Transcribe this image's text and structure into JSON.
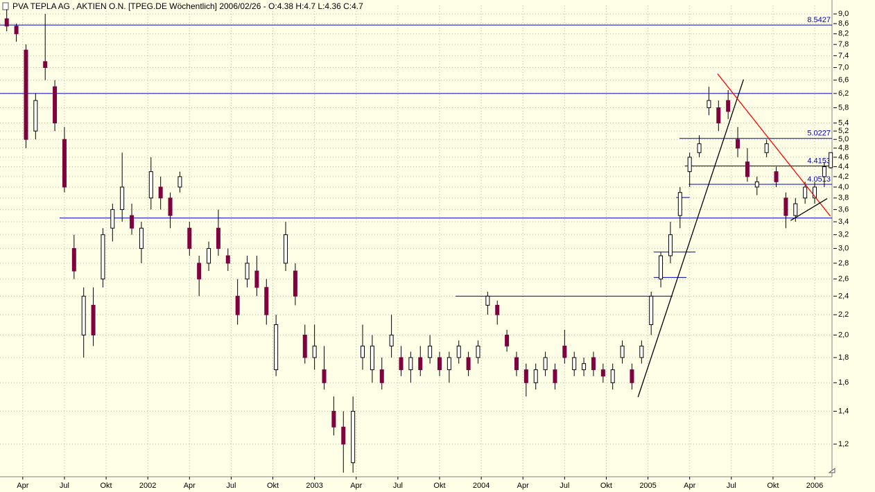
{
  "chart_data": {
    "type": "candlestick",
    "title": "PVA TEPLA AG , AKTIEN O.N. [TPEG.DE  Wöchentlich] 2006/02/26 - O:4.38 H:4.7 L:4.36 C:4.7",
    "log_scale_y": true,
    "grid": true,
    "up_color": "#ffffff",
    "down_color": "#800040",
    "xlim": [
      -2.1,
      257.4
    ],
    "ylim": [
      1.03,
      9.36
    ],
    "xticks": [
      {
        "value": 5,
        "label": "Apr"
      },
      {
        "value": 18,
        "label": "Jul"
      },
      {
        "value": 31,
        "label": "Okt"
      },
      {
        "value": 44,
        "label": "2002"
      },
      {
        "value": 57,
        "label": "Apr"
      },
      {
        "value": 70,
        "label": "Jul"
      },
      {
        "value": 83,
        "label": "Okt"
      },
      {
        "value": 96,
        "label": "2003"
      },
      {
        "value": 109,
        "label": "Apr"
      },
      {
        "value": 122,
        "label": "Jul"
      },
      {
        "value": 135,
        "label": "Okt"
      },
      {
        "value": 148,
        "label": "2004"
      },
      {
        "value": 161,
        "label": "Apr"
      },
      {
        "value": 174,
        "label": "Jul"
      },
      {
        "value": 187,
        "label": "Okt"
      },
      {
        "value": 200,
        "label": "2005"
      },
      {
        "value": 213,
        "label": "Apr"
      },
      {
        "value": 226,
        "label": "Jul"
      },
      {
        "value": 239,
        "label": "Okt"
      },
      {
        "value": 252,
        "label": "2006"
      }
    ],
    "yticks": [
      {
        "value": 9.0,
        "label": "9,0"
      },
      {
        "value": 8.6,
        "label": "8,6"
      },
      {
        "value": 8.2,
        "label": "8,2"
      },
      {
        "value": 7.8,
        "label": "7,8"
      },
      {
        "value": 7.4,
        "label": "7,4"
      },
      {
        "value": 7.0,
        "label": "7,0"
      },
      {
        "value": 6.6,
        "label": "6,6"
      },
      {
        "value": 6.2,
        "label": "6,2"
      },
      {
        "value": 5.8,
        "label": "5,8"
      },
      {
        "value": 5.4,
        "label": "5,4"
      },
      {
        "value": 5.2,
        "label": "5,2"
      },
      {
        "value": 5.0,
        "label": "5,0"
      },
      {
        "value": 4.8,
        "label": "4,8"
      },
      {
        "value": 4.6,
        "label": "4,6"
      },
      {
        "value": 4.4,
        "label": "4,4"
      },
      {
        "value": 4.2,
        "label": "4,2"
      },
      {
        "value": 4.0,
        "label": "4,0"
      },
      {
        "value": 3.8,
        "label": "3,8"
      },
      {
        "value": 3.6,
        "label": "3,6"
      },
      {
        "value": 3.4,
        "label": "3,4"
      },
      {
        "value": 3.2,
        "label": "3,2"
      },
      {
        "value": 3.0,
        "label": "3,0"
      },
      {
        "value": 2.8,
        "label": "2,8"
      },
      {
        "value": 2.6,
        "label": "2,6"
      },
      {
        "value": 2.4,
        "label": "2,4"
      },
      {
        "value": 2.2,
        "label": "2,2"
      },
      {
        "value": 2.0,
        "label": "2,0"
      },
      {
        "value": 1.8,
        "label": "1,8"
      },
      {
        "value": 1.6,
        "label": "1,6"
      },
      {
        "value": 1.4,
        "label": "1,4"
      },
      {
        "value": 1.2,
        "label": "1,2"
      }
    ],
    "x": [
      0,
      3,
      6,
      9,
      12,
      15,
      18,
      21,
      24,
      27,
      30,
      33,
      36,
      39,
      42,
      45,
      48,
      51,
      54,
      57,
      60,
      63,
      66,
      69,
      72,
      75,
      78,
      81,
      84,
      87,
      90,
      93,
      96,
      99,
      102,
      105,
      108,
      111,
      114,
      117,
      120,
      123,
      126,
      129,
      132,
      135,
      138,
      141,
      144,
      147,
      150,
      153,
      156,
      159,
      162,
      165,
      168,
      171,
      174,
      177,
      180,
      183,
      186,
      189,
      192,
      195,
      198,
      201,
      204,
      207,
      210,
      213,
      216,
      219,
      222,
      225,
      228,
      231,
      234,
      237,
      240,
      243,
      246,
      249,
      252,
      255,
      257
    ],
    "open": [
      8.8,
      8.5,
      7.6,
      5.2,
      7.2,
      6.4,
      5.0,
      3.0,
      2.0,
      2.3,
      2.6,
      3.3,
      3.6,
      3.5,
      3.0,
      3.8,
      4.0,
      3.8,
      4.0,
      3.3,
      2.8,
      2.8,
      3.3,
      2.9,
      2.4,
      2.6,
      2.7,
      2.5,
      1.7,
      2.8,
      2.7,
      2.0,
      1.8,
      1.7,
      1.4,
      1.3,
      1.1,
      1.8,
      1.7,
      1.7,
      1.9,
      1.8,
      1.7,
      1.8,
      1.8,
      1.8,
      1.7,
      1.8,
      1.8,
      1.8,
      2.3,
      2.3,
      2.0,
      1.8,
      1.7,
      1.6,
      1.7,
      1.7,
      1.9,
      1.7,
      1.7,
      1.8,
      1.7,
      1.6,
      1.8,
      1.7,
      1.8,
      2.1,
      2.6,
      2.9,
      3.5,
      4.3,
      4.7,
      5.8,
      5.8,
      6.0,
      5.0,
      4.5,
      4.0,
      4.7,
      4.3,
      3.8,
      3.5,
      3.8,
      3.8,
      4.2,
      4.38
    ],
    "high": [
      9.2,
      8.6,
      7.8,
      6.2,
      9.0,
      6.6,
      5.3,
      3.2,
      2.5,
      2.5,
      3.3,
      3.7,
      4.7,
      3.7,
      3.4,
      4.6,
      4.2,
      3.9,
      4.3,
      3.4,
      2.9,
      3.1,
      3.6,
      3.0,
      2.6,
      2.9,
      2.9,
      2.6,
      2.2,
      3.4,
      2.8,
      2.1,
      2.1,
      1.9,
      1.5,
      1.4,
      1.5,
      2.1,
      2.0,
      1.8,
      2.2,
      1.9,
      1.85,
      1.9,
      2.0,
      1.85,
      1.85,
      1.95,
      1.85,
      1.95,
      2.45,
      2.35,
      2.05,
      1.85,
      1.75,
      1.75,
      1.85,
      1.75,
      2.05,
      1.85,
      1.8,
      1.85,
      1.75,
      1.75,
      1.95,
      1.75,
      1.95,
      2.45,
      2.95,
      3.4,
      4.0,
      4.7,
      5.1,
      6.4,
      6.0,
      6.3,
      5.3,
      4.8,
      4.2,
      5.0,
      4.4,
      3.9,
      3.8,
      4.1,
      4.1,
      4.5,
      4.7
    ],
    "low": [
      8.3,
      7.9,
      4.8,
      5.0,
      6.6,
      5.2,
      3.9,
      2.6,
      1.8,
      1.9,
      2.5,
      3.1,
      3.4,
      3.2,
      2.8,
      3.6,
      3.6,
      3.3,
      3.9,
      2.9,
      2.4,
      2.7,
      2.9,
      2.7,
      2.1,
      2.5,
      2.4,
      2.1,
      1.65,
      2.7,
      2.3,
      1.75,
      1.7,
      1.55,
      1.25,
      1.05,
      1.05,
      1.7,
      1.6,
      1.55,
      1.8,
      1.65,
      1.6,
      1.65,
      1.75,
      1.65,
      1.6,
      1.75,
      1.65,
      1.75,
      2.2,
      2.1,
      1.85,
      1.65,
      1.5,
      1.55,
      1.65,
      1.55,
      1.75,
      1.65,
      1.65,
      1.65,
      1.6,
      1.55,
      1.75,
      1.55,
      1.75,
      2.0,
      2.5,
      2.8,
      3.3,
      4.0,
      4.6,
      5.6,
      5.2,
      5.5,
      4.6,
      4.1,
      3.85,
      4.6,
      4.0,
      3.3,
      3.4,
      3.7,
      3.7,
      4.0,
      4.36
    ],
    "close": [
      8.5,
      8.2,
      5.0,
      6.0,
      7.0,
      5.4,
      4.0,
      2.7,
      2.4,
      2.0,
      3.2,
      3.6,
      4.0,
      3.3,
      3.3,
      4.3,
      3.8,
      3.5,
      4.2,
      3.0,
      2.6,
      3.0,
      3.0,
      2.8,
      2.2,
      2.8,
      2.5,
      2.2,
      2.1,
      3.2,
      2.4,
      1.8,
      1.9,
      1.6,
      1.3,
      1.2,
      1.4,
      1.9,
      1.9,
      1.6,
      2.0,
      1.7,
      1.8,
      1.7,
      1.9,
      1.7,
      1.8,
      1.9,
      1.7,
      1.9,
      2.4,
      2.2,
      1.9,
      1.7,
      1.6,
      1.7,
      1.8,
      1.6,
      1.8,
      1.8,
      1.75,
      1.7,
      1.65,
      1.7,
      1.9,
      1.6,
      1.9,
      2.4,
      2.9,
      3.2,
      3.9,
      4.6,
      4.9,
      6.0,
      5.4,
      5.7,
      4.8,
      4.2,
      4.1,
      4.9,
      4.1,
      3.5,
      3.7,
      4.0,
      4.0,
      4.4,
      4.7
    ],
    "hlines": [
      {
        "value": 8.5427,
        "from": -2.1,
        "to": 257.4,
        "label": "8.5427",
        "color": "#0000c0"
      },
      {
        "value": 6.2,
        "from": -2.1,
        "to": 257.4,
        "color": "#0000c0"
      },
      {
        "value": 5.0227,
        "from": 209.8,
        "to": 257.4,
        "label": "5.0227",
        "color": "#0000c0"
      },
      {
        "value": 4.4153,
        "from": 211.5,
        "to": 257.4,
        "label": "4.4153",
        "color": "#0000c0"
      },
      {
        "value": 4.0513,
        "from": 212.7,
        "to": 257.4,
        "label": "4.0513",
        "color": "#0000c0"
      },
      {
        "value": 3.46,
        "from": 16.5,
        "to": 257.4,
        "color": "#0000c0"
      },
      {
        "value": 2.4,
        "from": 140.0,
        "to": 207.7,
        "color": "#0000c0"
      },
      {
        "value": 2.95,
        "from": 201.8,
        "to": 214.8,
        "color": "#0000c0"
      },
      {
        "value": 2.62,
        "from": 201.8,
        "to": 212.0,
        "color": "#0000c0"
      },
      {
        "value": 3.81,
        "from": 208.8,
        "to": 213.0,
        "color": "#0000c0"
      }
    ],
    "trendlines": [
      {
        "x": [
          196.9,
          229.8
        ],
        "y": [
          1.496,
          6.62
        ],
        "color": "#000000"
      },
      {
        "x": [
          221.7,
          256.9
        ],
        "y": [
          6.8,
          3.49
        ],
        "color": "#ff0000"
      },
      {
        "x": [
          244.5,
          255.9
        ],
        "y": [
          3.42,
          3.79
        ],
        "color": "#000000"
      }
    ]
  }
}
